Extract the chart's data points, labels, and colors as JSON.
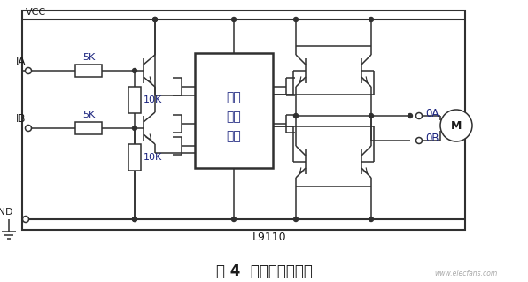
{
  "title": "图 4  电机驱动模块图",
  "chip_label": "L9110",
  "chip_text": [
    "控制",
    "驱动",
    "电路"
  ],
  "res_5k_label": "5K",
  "res_10k_label": "10K",
  "label_ia": "IA",
  "label_ib": "IB",
  "label_vcc": "VCC",
  "label_gnd": "GND",
  "label_0a": "0A",
  "label_0b": "0B",
  "label_m": "M",
  "bg_color": "#ffffff",
  "line_color": "#303030",
  "text_blue": "#1a237e",
  "text_dark": "#1a1a1a",
  "watermark": "www.elecfans.com",
  "figsize": [
    5.96,
    3.19
  ],
  "dpi": 100
}
